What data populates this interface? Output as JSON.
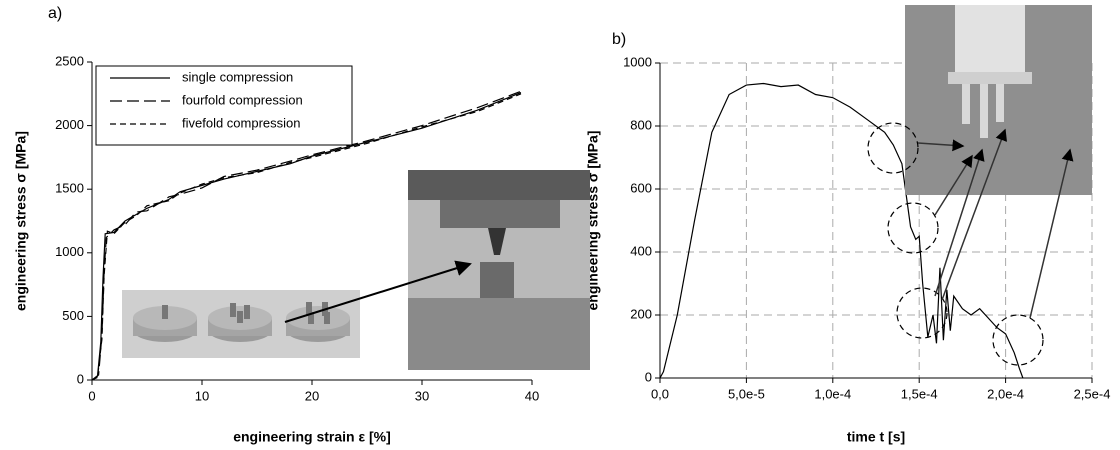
{
  "chart_data": [
    {
      "type": "line",
      "panel_label": "a)",
      "x_label": "engineering strain ε [%]",
      "y_label": "engineering stress σ [MPa]",
      "xlim": [
        0,
        40
      ],
      "ylim": [
        0,
        2500
      ],
      "xticks": [
        0,
        10,
        20,
        30,
        40
      ],
      "yticks": [
        0,
        500,
        1000,
        1500,
        2000,
        2500
      ],
      "grid": false,
      "legend": "upper left",
      "series": [
        {
          "name": "single compression",
          "color": "#000000",
          "style": "solid",
          "x": [
            0,
            0.5,
            0.8,
            1.0,
            1.2,
            2,
            3,
            4,
            5,
            7,
            8,
            10,
            12,
            15,
            18,
            20,
            25,
            30,
            35,
            39
          ],
          "values": [
            0,
            30,
            300,
            800,
            1150,
            1160,
            1250,
            1300,
            1350,
            1420,
            1480,
            1530,
            1580,
            1640,
            1700,
            1760,
            1870,
            1980,
            2120,
            2260
          ]
        },
        {
          "name": "fourfold compression",
          "color": "#000000",
          "style": "long-dash",
          "x": [
            0,
            0.6,
            0.9,
            1.1,
            1.3,
            2,
            3,
            4,
            5,
            7,
            8,
            10,
            12,
            15,
            18,
            20,
            25,
            30,
            35,
            39
          ],
          "values": [
            0,
            40,
            350,
            850,
            1120,
            1180,
            1220,
            1320,
            1330,
            1440,
            1460,
            1510,
            1600,
            1650,
            1720,
            1770,
            1880,
            2000,
            2140,
            2270
          ]
        },
        {
          "name": "fivefold compression",
          "color": "#000000",
          "style": "dash",
          "x": [
            0,
            0.5,
            0.9,
            1.1,
            1.4,
            2,
            3,
            4,
            5,
            7,
            8,
            10,
            12,
            15,
            18,
            20,
            25,
            30,
            35,
            39
          ],
          "values": [
            0,
            20,
            320,
            820,
            1170,
            1150,
            1240,
            1290,
            1370,
            1410,
            1470,
            1540,
            1590,
            1630,
            1710,
            1750,
            1860,
            1990,
            2110,
            2250
          ]
        }
      ]
    },
    {
      "type": "line",
      "panel_label": "b)",
      "x_label": "time t [s]",
      "y_label": "engineering stress σ [MPa]",
      "xlim": [
        0,
        0.00025
      ],
      "ylim": [
        0,
        1000
      ],
      "xticks": [
        {
          "value": 0,
          "label": "0,0"
        },
        {
          "value": 5e-05,
          "label": "5,0e-5"
        },
        {
          "value": 0.0001,
          "label": "1,0e-4"
        },
        {
          "value": 0.00015,
          "label": "1,5e-4"
        },
        {
          "value": 0.0002,
          "label": "2,0e-4"
        },
        {
          "value": 0.00025,
          "label": "2,5e-4"
        }
      ],
      "yticks": [
        0,
        200,
        400,
        600,
        800,
        1000
      ],
      "grid": true,
      "series": [
        {
          "color": "#000000",
          "style": "solid",
          "x": [
            0,
            2e-06,
            1e-05,
            2e-05,
            3e-05,
            4e-05,
            5e-05,
            6e-05,
            7e-05,
            8e-05,
            9e-05,
            0.0001,
            0.00011,
            0.00012,
            0.00013,
            0.000135,
            0.00014,
            0.000142,
            0.000145,
            0.000148,
            0.00015,
            0.000152,
            0.000155,
            0.000158,
            0.00016,
            0.000162,
            0.000164,
            0.000166,
            0.000168,
            0.00017,
            0.000175,
            0.00018,
            0.000185,
            0.00019,
            0.000195,
            0.0002,
            0.000205,
            0.000208,
            0.00021
          ],
          "values": [
            0,
            20,
            200,
            500,
            780,
            900,
            930,
            935,
            925,
            930,
            900,
            890,
            860,
            820,
            780,
            740,
            680,
            600,
            480,
            440,
            450,
            300,
            130,
            200,
            110,
            350,
            120,
            280,
            150,
            260,
            220,
            200,
            220,
            190,
            160,
            140,
            80,
            30,
            0
          ]
        }
      ]
    }
  ]
}
